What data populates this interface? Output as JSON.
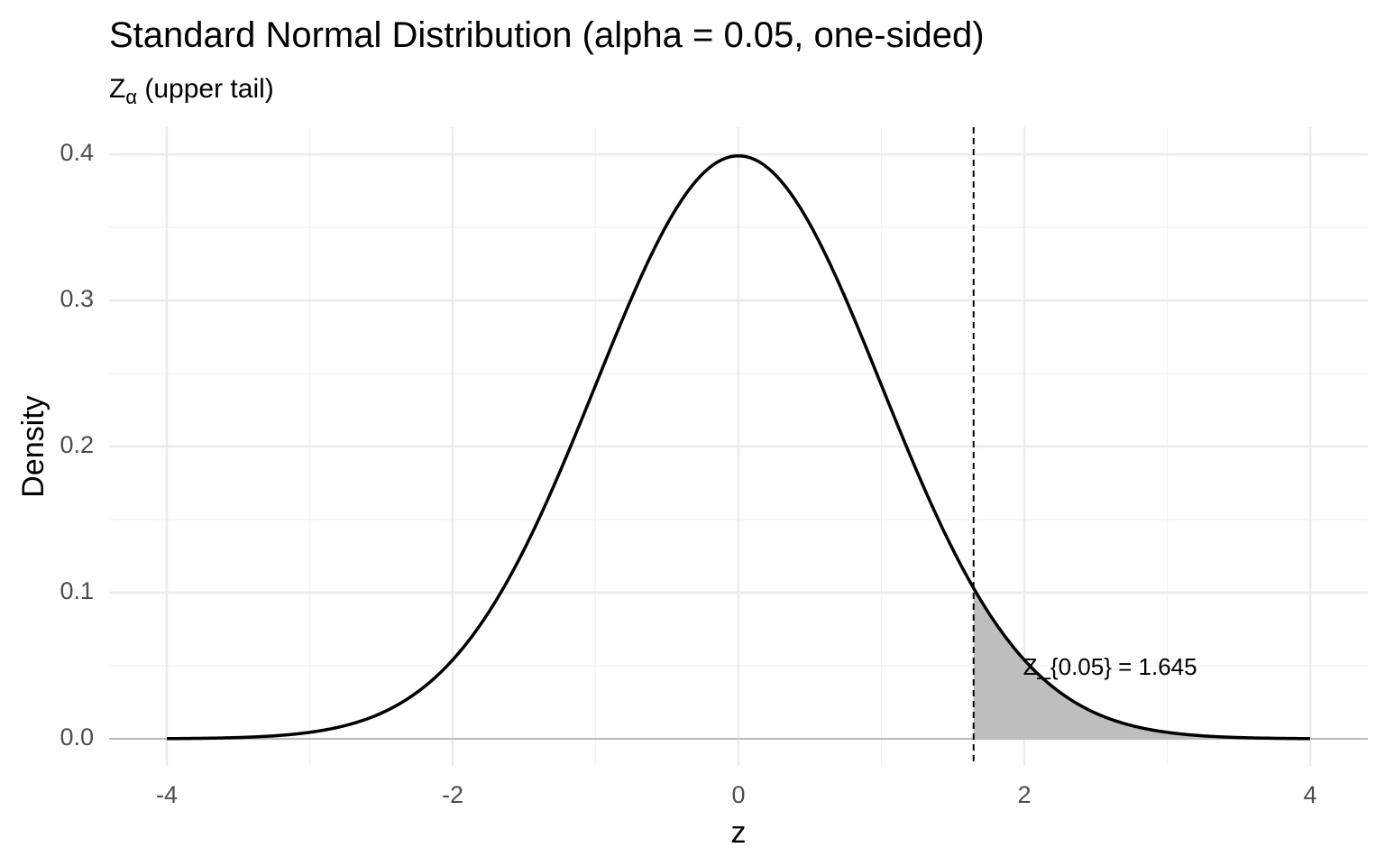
{
  "chart_data": {
    "type": "area",
    "title": "Standard Normal Distribution (alpha = 0.05, one-sided)",
    "subtitle": {
      "symbol": "Z",
      "subscript": "α",
      "text": " (upper tail)"
    },
    "xlabel": "z",
    "ylabel": "Density",
    "xlim": [
      -4,
      4
    ],
    "ylim": [
      0,
      0.4
    ],
    "x_ticks": [
      -4,
      -2,
      0,
      2,
      4
    ],
    "x_tick_labels": [
      "-4",
      "-2",
      "0",
      "2",
      "4"
    ],
    "y_ticks": [
      0,
      0.1,
      0.2,
      0.3,
      0.4
    ],
    "y_tick_labels": [
      "0.0",
      "0.1",
      "0.2",
      "0.3",
      "0.4"
    ],
    "grid": true,
    "series": [
      {
        "curve": "standard normal density",
        "mean": 0,
        "sd": 1,
        "x_range": [
          -4,
          4
        ],
        "color": "#000000"
      }
    ],
    "shaded_region": {
      "from": 1.645,
      "to": 4,
      "fill": "#bebebe"
    },
    "critical_line": {
      "x": 1.645,
      "style": "dashed",
      "color": "#000000"
    },
    "annotation": {
      "text": "Z_{0.05} = 1.645",
      "x": 2.6,
      "y": 0.048
    }
  }
}
